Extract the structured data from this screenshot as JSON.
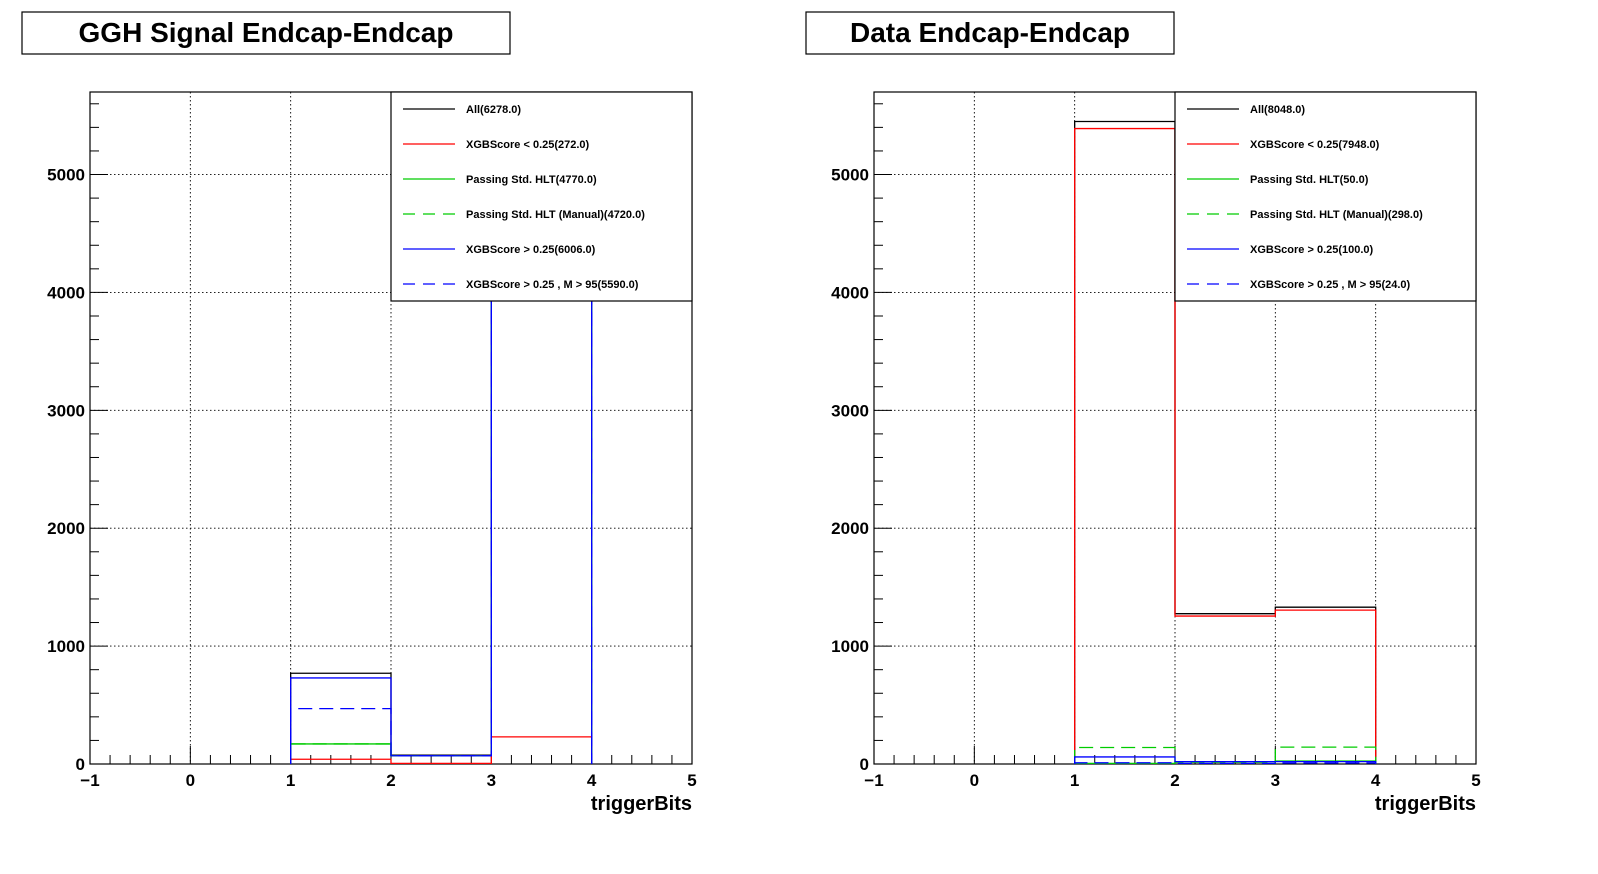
{
  "chart_data": [
    {
      "type": "histogram-step",
      "title": "GGH Signal Endcap-Endcap",
      "xlabel": "triggerBits",
      "ylabel": "",
      "xlim": [
        -1,
        5
      ],
      "ylim": [
        0,
        5700
      ],
      "x_ticks": [
        "−1",
        "0",
        "1",
        "2",
        "3",
        "4",
        "5"
      ],
      "y_ticks": [
        "0",
        "1000",
        "2000",
        "3000",
        "4000",
        "5000"
      ],
      "grid": true,
      "legend_position": "top-right",
      "bin_edges": [
        1,
        2,
        3,
        4
      ],
      "series": [
        {
          "name": "All(6278.0)",
          "color": "#000000",
          "style": "solid",
          "values": [
            770,
            75,
            5440
          ]
        },
        {
          "name": "XGBScore < 0.25(272.0)",
          "color": "#ff0000",
          "style": "solid",
          "values": [
            40,
            5,
            230
          ]
        },
        {
          "name": "Passing Std. HLT(4770.0)",
          "color": "#00cc00",
          "style": "solid",
          "values": [
            170,
            70,
            4530
          ]
        },
        {
          "name": "Passing Std. HLT (Manual)(4720.0)",
          "color": "#00cc00",
          "style": "dashed",
          "values": [
            170,
            70,
            4480
          ]
        },
        {
          "name": "XGBScore > 0.25(6006.0)",
          "color": "#0000ff",
          "style": "solid",
          "values": [
            730,
            70,
            5210
          ]
        },
        {
          "name": "XGBScore > 0.25 , M > 95(5590.0)",
          "color": "#0000ff",
          "style": "dashed",
          "values": [
            470,
            70,
            5050
          ]
        }
      ]
    },
    {
      "type": "histogram-step",
      "title": "Data Endcap-Endcap",
      "xlabel": "triggerBits",
      "ylabel": "",
      "xlim": [
        -1,
        5
      ],
      "ylim": [
        0,
        5700
      ],
      "x_ticks": [
        "−1",
        "0",
        "1",
        "2",
        "3",
        "4",
        "5"
      ],
      "y_ticks": [
        "0",
        "1000",
        "2000",
        "3000",
        "4000",
        "5000"
      ],
      "grid": true,
      "legend_position": "top-right",
      "bin_edges": [
        1,
        2,
        3,
        4
      ],
      "series": [
        {
          "name": "All(8048.0)",
          "color": "#000000",
          "style": "solid",
          "values": [
            5450,
            1275,
            1330
          ]
        },
        {
          "name": "XGBScore < 0.25(7948.0)",
          "color": "#ff0000",
          "style": "solid",
          "values": [
            5390,
            1255,
            1305
          ]
        },
        {
          "name": "Passing Std. HLT(50.0)",
          "color": "#00cc00",
          "style": "solid",
          "values": [
            5,
            20,
            25
          ]
        },
        {
          "name": "Passing Std. HLT (Manual)(298.0)",
          "color": "#00cc00",
          "style": "dashed",
          "values": [
            140,
            15,
            143
          ]
        },
        {
          "name": "XGBScore > 0.25(100.0)",
          "color": "#0000ff",
          "style": "solid",
          "values": [
            60,
            20,
            20
          ]
        },
        {
          "name": "XGBScore > 0.25 , M > 95(24.0)",
          "color": "#0000ff",
          "style": "dashed",
          "values": [
            10,
            5,
            9
          ]
        }
      ]
    }
  ]
}
